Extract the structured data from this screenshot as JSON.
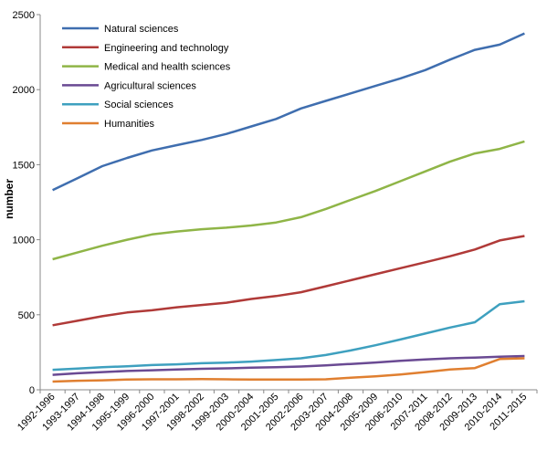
{
  "chart_data": {
    "type": "line",
    "title": "",
    "xlabel": "",
    "ylabel": "number",
    "ylim": [
      0,
      2500
    ],
    "yticks": [
      0,
      500,
      1000,
      1500,
      2000,
      2500
    ],
    "grid": false,
    "legend_position": "top-left",
    "categories": [
      "1992-1996",
      "1993-1997",
      "1994-1998",
      "1995-1999",
      "1996-2000",
      "1997-2001",
      "1998-2002",
      "1999-2003",
      "2000-2004",
      "2001-2005",
      "2002-2006",
      "2003-2007",
      "2004-2008",
      "2005-2009",
      "2006-2010",
      "2007-2011",
      "2008-2012",
      "2009-2013",
      "2010-2014",
      "2011-2015"
    ],
    "series": [
      {
        "name": "Natural sciences",
        "color": "#3F6EAF",
        "values": [
          1330,
          1410,
          1490,
          1545,
          1595,
          1630,
          1665,
          1705,
          1755,
          1805,
          1875,
          1925,
          1975,
          2025,
          2075,
          2130,
          2200,
          2265,
          2300,
          2375
        ]
      },
      {
        "name": "Engineering and technology",
        "color": "#B03A38",
        "values": [
          430,
          460,
          490,
          515,
          530,
          550,
          565,
          580,
          605,
          625,
          650,
          690,
          730,
          770,
          810,
          850,
          890,
          935,
          995,
          1025
        ]
      },
      {
        "name": "Medical and health sciences",
        "color": "#8FB547",
        "values": [
          870,
          915,
          960,
          1000,
          1035,
          1055,
          1070,
          1080,
          1095,
          1115,
          1150,
          1205,
          1265,
          1325,
          1390,
          1455,
          1520,
          1575,
          1605,
          1655
        ]
      },
      {
        "name": "Agricultural sciences",
        "color": "#6A4A93",
        "values": [
          100,
          110,
          118,
          125,
          130,
          135,
          140,
          143,
          147,
          150,
          155,
          163,
          172,
          182,
          193,
          202,
          210,
          215,
          220,
          225
        ]
      },
      {
        "name": "Social sciences",
        "color": "#3EA0BF",
        "values": [
          133,
          142,
          150,
          157,
          165,
          170,
          177,
          181,
          188,
          198,
          210,
          232,
          262,
          297,
          335,
          375,
          415,
          450,
          570,
          590
        ]
      },
      {
        "name": "Humanities",
        "color": "#E07F30",
        "values": [
          55,
          60,
          63,
          68,
          70,
          70,
          72,
          70,
          68,
          68,
          68,
          70,
          80,
          90,
          102,
          118,
          135,
          145,
          205,
          210
        ]
      }
    ]
  }
}
